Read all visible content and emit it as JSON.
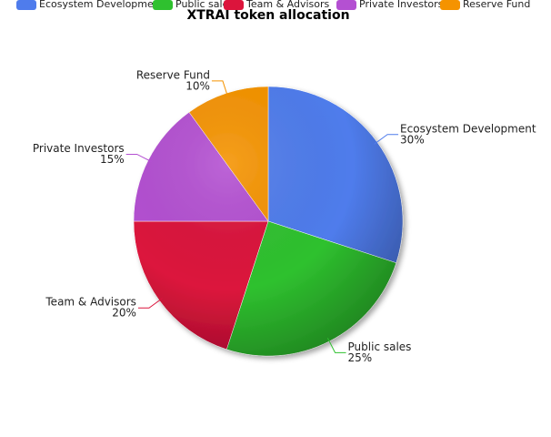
{
  "chart_data": {
    "type": "pie",
    "title": "XTRAI token allocation",
    "categories": [
      "Ecosystem Development",
      "Public sales",
      "Team & Advisors",
      "Private Investors",
      "Reserve Fund"
    ],
    "values": [
      30,
      25,
      20,
      15,
      10
    ],
    "value_labels": [
      "30%",
      "25%",
      "20%",
      "15%",
      "10%"
    ],
    "colors": [
      "#4f7cec",
      "#2fc12f",
      "#dc143c",
      "#b450d2",
      "#f59300"
    ],
    "legend": "top"
  }
}
